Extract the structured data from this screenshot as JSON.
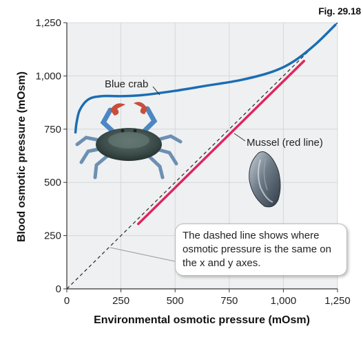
{
  "figure_label": "Fig. 29.18",
  "callout_text": "The dashed line shows where osmotic pressure is the same on the x and y axes.",
  "colors": {
    "blue_crab": "#1a6db3",
    "mussel": "#e0245e",
    "grid": "#d4d8db",
    "plot_bg": "#eef0f1"
  },
  "chart_data": {
    "type": "line",
    "xlabel": "Environmental osmotic pressure (mOsm)",
    "ylabel": "Blood osmotic pressure (mOsm)",
    "xlim": [
      0,
      1250
    ],
    "ylim": [
      0,
      1250
    ],
    "x_ticks": [
      "0",
      "250",
      "500",
      "750",
      "1,000",
      "1,250"
    ],
    "y_ticks": [
      "0",
      "250",
      "500",
      "750",
      "1,000",
      "1,250"
    ],
    "grid": true,
    "series": [
      {
        "name": "Blue crab",
        "color": "#1a6db3",
        "x": [
          40,
          45,
          60,
          100,
          160,
          250,
          350,
          500,
          650,
          800,
          950,
          1050,
          1150,
          1240
        ],
        "y": [
          735,
          780,
          840,
          890,
          905,
          905,
          910,
          930,
          955,
          980,
          1020,
          1070,
          1150,
          1240
        ]
      },
      {
        "name": "Mussel (red line)",
        "color": "#e0245e",
        "x": [
          330,
          1095
        ],
        "y": [
          305,
          1070
        ]
      },
      {
        "name": "",
        "style": "dashed",
        "color": "#333333",
        "x": [
          0,
          1250
        ],
        "y": [
          0,
          1250
        ]
      }
    ]
  }
}
